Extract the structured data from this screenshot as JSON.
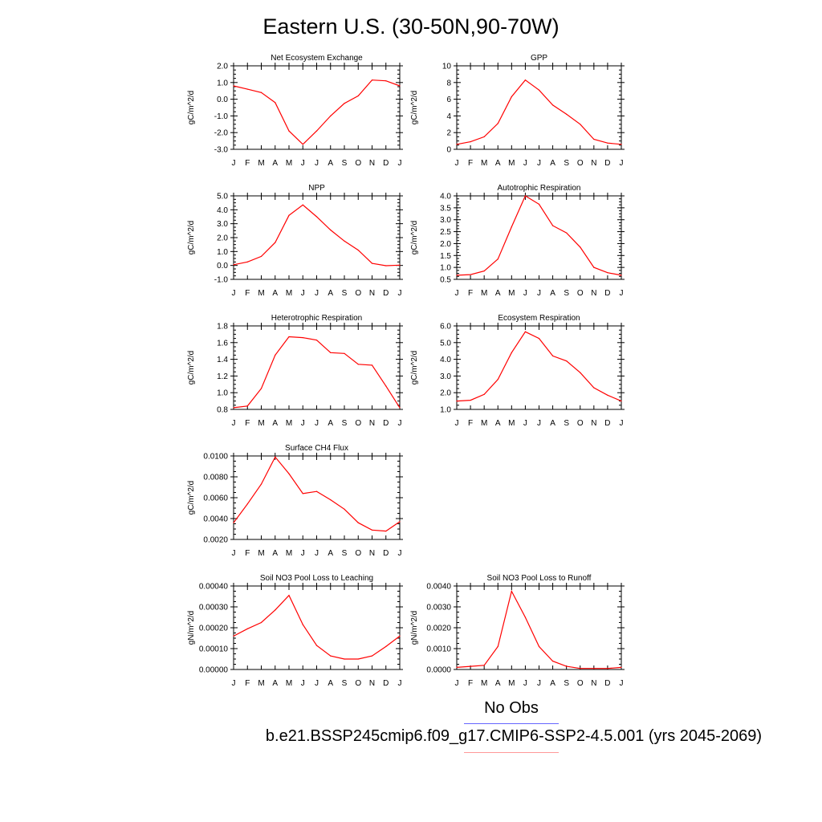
{
  "title": "Eastern U.S. (30-50N,90-70W)",
  "months": [
    "J",
    "F",
    "M",
    "A",
    "M",
    "J",
    "J",
    "A",
    "S",
    "O",
    "N",
    "D",
    "J"
  ],
  "colors": {
    "model": "#ff0000",
    "obs": "#6666ff",
    "model_legend": "#ff9999",
    "axis": "#000000"
  },
  "legend": {
    "obs_label": "No Obs",
    "model_label": "b.e21.BSSP245cmip6.f09_g17.CMIP6-SSP2-4.5.001 (yrs 2045-2069)"
  },
  "chart_data": [
    {
      "type": "line",
      "title": "Net Ecosystem Exchange",
      "ylabel": "gC/m^2/d",
      "ylim": [
        -3.0,
        2.0
      ],
      "yticks": [
        "2.0",
        "1.0",
        "0.0",
        "-1.0",
        "-2.0",
        "-3.0"
      ],
      "ytick_values": [
        2.0,
        1.0,
        0.0,
        -1.0,
        -2.0,
        -3.0
      ],
      "x": [
        "J",
        "F",
        "M",
        "A",
        "M",
        "J",
        "J",
        "A",
        "S",
        "O",
        "N",
        "D",
        "J"
      ],
      "series": [
        {
          "values": [
            0.8,
            0.6,
            0.4,
            -0.2,
            -1.9,
            -2.7,
            -1.9,
            -1.0,
            -0.25,
            0.2,
            1.15,
            1.1,
            0.8
          ]
        }
      ]
    },
    {
      "type": "line",
      "title": "GPP",
      "ylabel": "gC/m^2/d",
      "ylim": [
        0,
        10
      ],
      "yticks": [
        "10",
        "8",
        "6",
        "4",
        "2",
        "0"
      ],
      "ytick_values": [
        10,
        8,
        6,
        4,
        2,
        0
      ],
      "x": [
        "J",
        "F",
        "M",
        "A",
        "M",
        "J",
        "J",
        "A",
        "S",
        "O",
        "N",
        "D",
        "J"
      ],
      "series": [
        {
          "values": [
            0.6,
            0.9,
            1.5,
            3.1,
            6.3,
            8.3,
            7.1,
            5.3,
            4.2,
            3.0,
            1.2,
            0.75,
            0.6
          ]
        }
      ]
    },
    {
      "type": "line",
      "title": "NPP",
      "ylabel": "gC/m^2/d",
      "ylim": [
        -1.0,
        5.0
      ],
      "yticks": [
        "5.0",
        "4.0",
        "3.0",
        "2.0",
        "1.0",
        "0.0",
        "-1.0"
      ],
      "ytick_values": [
        5.0,
        4.0,
        3.0,
        2.0,
        1.0,
        0.0,
        -1.0
      ],
      "x": [
        "J",
        "F",
        "M",
        "A",
        "M",
        "J",
        "J",
        "A",
        "S",
        "O",
        "N",
        "D",
        "J"
      ],
      "series": [
        {
          "values": [
            0.05,
            0.25,
            0.65,
            1.65,
            3.6,
            4.35,
            3.5,
            2.55,
            1.75,
            1.1,
            0.15,
            -0.02,
            0.02
          ]
        }
      ]
    },
    {
      "type": "line",
      "title": "Autotrophic Respiration",
      "ylabel": "gC/m^2/d",
      "ylim": [
        0.5,
        4.0
      ],
      "yticks": [
        "4.0",
        "3.5",
        "3.0",
        "2.5",
        "2.0",
        "1.5",
        "1.0",
        "0.5"
      ],
      "ytick_values": [
        4.0,
        3.5,
        3.0,
        2.5,
        2.0,
        1.5,
        1.0,
        0.5
      ],
      "x": [
        "J",
        "F",
        "M",
        "A",
        "M",
        "J",
        "J",
        "A",
        "S",
        "O",
        "N",
        "D",
        "J"
      ],
      "series": [
        {
          "values": [
            0.67,
            0.7,
            0.85,
            1.35,
            2.7,
            4.0,
            3.65,
            2.75,
            2.45,
            1.85,
            1.0,
            0.78,
            0.67
          ]
        }
      ]
    },
    {
      "type": "line",
      "title": "Heterotrophic Respiration",
      "ylabel": "gC/m^2/d",
      "ylim": [
        0.8,
        1.8
      ],
      "yticks": [
        "1.8",
        "1.6",
        "1.4",
        "1.2",
        "1.0",
        "0.8"
      ],
      "ytick_values": [
        1.8,
        1.6,
        1.4,
        1.2,
        1.0,
        0.8
      ],
      "x": [
        "J",
        "F",
        "M",
        "A",
        "M",
        "J",
        "J",
        "A",
        "S",
        "O",
        "N",
        "D",
        "J"
      ],
      "series": [
        {
          "values": [
            0.82,
            0.84,
            1.05,
            1.45,
            1.67,
            1.66,
            1.63,
            1.48,
            1.47,
            1.34,
            1.33,
            1.08,
            0.82
          ]
        }
      ]
    },
    {
      "type": "line",
      "title": "Ecosystem Respiration",
      "ylabel": "gC/m^2/d",
      "ylim": [
        1.0,
        6.0
      ],
      "yticks": [
        "6.0",
        "5.0",
        "4.0",
        "3.0",
        "2.0",
        "1.0"
      ],
      "ytick_values": [
        6.0,
        5.0,
        4.0,
        3.0,
        2.0,
        1.0
      ],
      "x": [
        "J",
        "F",
        "M",
        "A",
        "M",
        "J",
        "J",
        "A",
        "S",
        "O",
        "N",
        "D",
        "J"
      ],
      "series": [
        {
          "values": [
            1.5,
            1.55,
            1.9,
            2.8,
            4.4,
            5.65,
            5.25,
            4.2,
            3.9,
            3.2,
            2.3,
            1.85,
            1.5
          ]
        }
      ]
    },
    {
      "type": "line",
      "title": "Surface CH4 Flux",
      "ylabel": "gC/m^2/d",
      "ylim": [
        0.002,
        0.01
      ],
      "yticks": [
        "0.0100",
        "0.0080",
        "0.0060",
        "0.0040",
        "0.0020"
      ],
      "ytick_values": [
        0.01,
        0.008,
        0.006,
        0.004,
        0.002
      ],
      "x": [
        "J",
        "F",
        "M",
        "A",
        "M",
        "J",
        "J",
        "A",
        "S",
        "O",
        "N",
        "D",
        "J"
      ],
      "series": [
        {
          "values": [
            0.0036,
            0.0054,
            0.0073,
            0.0099,
            0.0083,
            0.0064,
            0.0066,
            0.0058,
            0.0049,
            0.0036,
            0.0029,
            0.0028,
            0.0037
          ]
        }
      ]
    },
    {
      "type": "line",
      "title": "Soil NO3 Pool Loss to Leaching",
      "ylabel": "gN/m^2/d",
      "ylim": [
        0,
        0.0004
      ],
      "yticks": [
        "0.00040",
        "0.00030",
        "0.00020",
        "0.00010",
        "0.00000"
      ],
      "ytick_values": [
        0.0004,
        0.0003,
        0.0002,
        0.0001,
        0
      ],
      "x": [
        "J",
        "F",
        "M",
        "A",
        "M",
        "J",
        "J",
        "A",
        "S",
        "O",
        "N",
        "D",
        "J"
      ],
      "series": [
        {
          "values": [
            0.00016,
            0.000195,
            0.000225,
            0.000285,
            0.000355,
            0.000215,
            0.000115,
            6.5e-05,
            5e-05,
            5e-05,
            6.5e-05,
            0.00011,
            0.00016
          ]
        }
      ]
    },
    {
      "type": "line",
      "title": "Soil NO3 Pool Loss to Runoff",
      "ylabel": "gN/m^2/d",
      "ylim": [
        0,
        0.004
      ],
      "yticks": [
        "0.0040",
        "0.0030",
        "0.0020",
        "0.0010",
        "0.0000"
      ],
      "ytick_values": [
        0.004,
        0.003,
        0.002,
        0.001,
        0
      ],
      "x": [
        "J",
        "F",
        "M",
        "A",
        "M",
        "J",
        "J",
        "A",
        "S",
        "O",
        "N",
        "D",
        "J"
      ],
      "series": [
        {
          "values": [
            0.0001,
            0.00015,
            0.0002,
            0.0011,
            0.00375,
            0.0025,
            0.0011,
            0.0004,
            0.00015,
            5e-05,
            5e-05,
            5e-05,
            0.0001
          ]
        }
      ]
    }
  ]
}
